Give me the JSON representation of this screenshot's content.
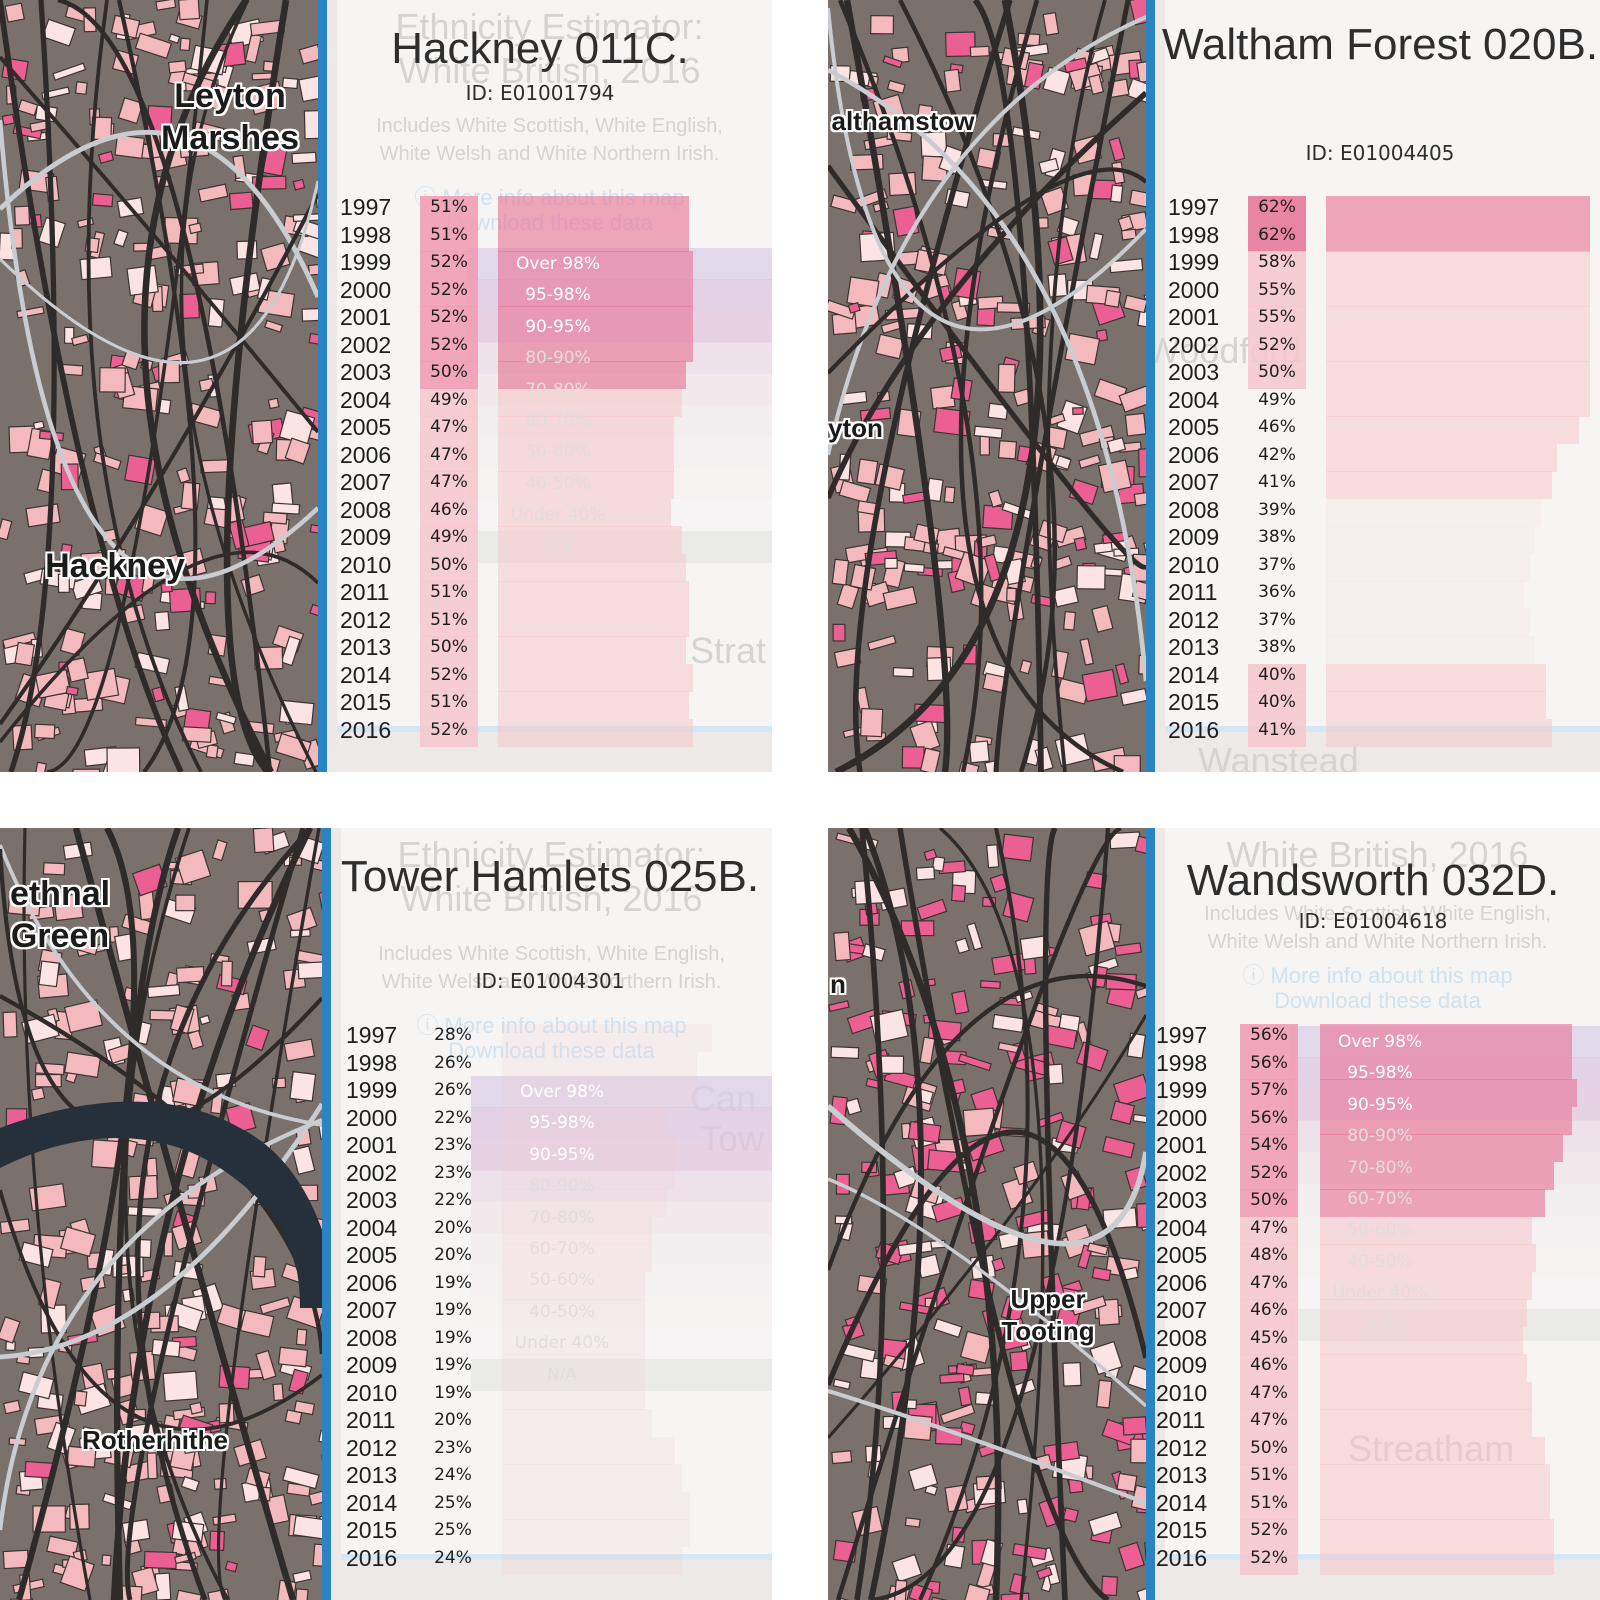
{
  "panels": [
    {
      "title": "Hackney 011C.",
      "id_label": "ID: E01001794",
      "ghost_title": [
        "Ethnicity Estimator:",
        "White British, 2016"
      ],
      "ghost_text": [
        "Includes White Scottish, White English,",
        "White Welsh and White Northern Irish."
      ],
      "ghost_links": [
        "ⓘ More info about this map",
        "Download these data"
      ],
      "legend": [
        "Over 98%",
        "95-98%",
        "90-95%",
        "80-90%",
        "70-80%",
        "60-70%",
        "50-60%",
        "40-50%",
        "Under 40%",
        "N/A"
      ],
      "map_labels": [
        "Leyton Marshes",
        "Hackney"
      ],
      "ghost_map_labels": [
        "Strat"
      ],
      "years": [
        "1997",
        "1998",
        "1999",
        "2000",
        "2001",
        "2002",
        "2003",
        "2004",
        "2005",
        "2006",
        "2007",
        "2008",
        "2009",
        "2010",
        "2011",
        "2012",
        "2013",
        "2014",
        "2015",
        "2016"
      ],
      "values": [
        "51%",
        "51%",
        "52%",
        "52%",
        "52%",
        "52%",
        "50%",
        "49%",
        "47%",
        "47%",
        "47%",
        "46%",
        "49%",
        "50%",
        "51%",
        "51%",
        "50%",
        "52%",
        "51%",
        "52%"
      ]
    },
    {
      "title": "Waltham Forest 020B.",
      "id_label": "ID: E01004405",
      "ghost_title": [],
      "ghost_text": [],
      "ghost_links": [],
      "legend": [],
      "map_labels": [
        "althamstow",
        "yton"
      ],
      "ghost_map_labels": [
        "Woodford",
        "Wanstead"
      ],
      "years": [
        "1997",
        "1998",
        "1999",
        "2000",
        "2001",
        "2002",
        "2003",
        "2004",
        "2005",
        "2006",
        "2007",
        "2008",
        "2009",
        "2010",
        "2011",
        "2012",
        "2013",
        "2014",
        "2015",
        "2016"
      ],
      "values": [
        "62%",
        "62%",
        "58%",
        "55%",
        "55%",
        "52%",
        "50%",
        "49%",
        "46%",
        "42%",
        "41%",
        "39%",
        "38%",
        "37%",
        "36%",
        "37%",
        "38%",
        "40%",
        "40%",
        "41%"
      ]
    },
    {
      "title": "Tower Hamlets 025B.",
      "id_label": "ID: E01004301",
      "ghost_title": [
        "Ethnicity Estimator:",
        "White British, 2016"
      ],
      "ghost_text": [
        "Includes White Scottish, White English,",
        "White Welsh and White Northern Irish."
      ],
      "ghost_links": [
        "ⓘ More info about this map",
        "Download these data"
      ],
      "legend": [
        "Over 98%",
        "95-98%",
        "90-95%",
        "80-90%",
        "70-80%",
        "60-70%",
        "50-60%",
        "40-50%",
        "Under 40%",
        "N/A"
      ],
      "map_labels": [
        "ethnal Green",
        "Rotherhithe"
      ],
      "ghost_map_labels": [
        "Can",
        "Tow"
      ],
      "years": [
        "1997",
        "1998",
        "1999",
        "2000",
        "2001",
        "2002",
        "2003",
        "2004",
        "2005",
        "2006",
        "2007",
        "2008",
        "2009",
        "2010",
        "2011",
        "2012",
        "2013",
        "2014",
        "2015",
        "2016"
      ],
      "values": [
        "28%",
        "26%",
        "26%",
        "22%",
        "23%",
        "23%",
        "22%",
        "20%",
        "20%",
        "19%",
        "19%",
        "19%",
        "19%",
        "19%",
        "20%",
        "23%",
        "24%",
        "25%",
        "25%",
        "24%"
      ]
    },
    {
      "title": "Wandsworth 032D.",
      "id_label": "ID: E01004618",
      "ghost_title": [
        "White British, 2016"
      ],
      "ghost_text": [
        "Includes White Scottish, White English,",
        "White Welsh and White Northern Irish."
      ],
      "ghost_links": [
        "ⓘ More info about this map",
        "Download these data"
      ],
      "legend": [
        "Over 98%",
        "95-98%",
        "90-95%",
        "80-90%",
        "70-80%",
        "60-70%",
        "50-60%",
        "40-50%",
        "Under 40%",
        "N/A"
      ],
      "map_labels": [
        "n",
        "Upper Tooting"
      ],
      "ghost_map_labels": [
        "Streatham"
      ],
      "years": [
        "1997",
        "1998",
        "1999",
        "2000",
        "2001",
        "2002",
        "2003",
        "2004",
        "2005",
        "2006",
        "2007",
        "2008",
        "2009",
        "2010",
        "2011",
        "2012",
        "2013",
        "2014",
        "2015",
        "2016"
      ],
      "values": [
        "56%",
        "56%",
        "57%",
        "56%",
        "54%",
        "52%",
        "50%",
        "47%",
        "48%",
        "47%",
        "46%",
        "45%",
        "46%",
        "47%",
        "47%",
        "50%",
        "51%",
        "51%",
        "52%",
        "52%"
      ]
    }
  ],
  "colors": {
    "divider": "#2a84c2",
    "bar_strong": "#e8799b",
    "bar_light": "#f6c6cb",
    "pct_strong": "#f19db5",
    "legend_purple": "#cbbbd9",
    "map_base": "#7b716c",
    "road": "#2f2b2a",
    "block_pink": "#f4b9bd",
    "block_hot": "#ec5f92",
    "water": "#25303a"
  }
}
